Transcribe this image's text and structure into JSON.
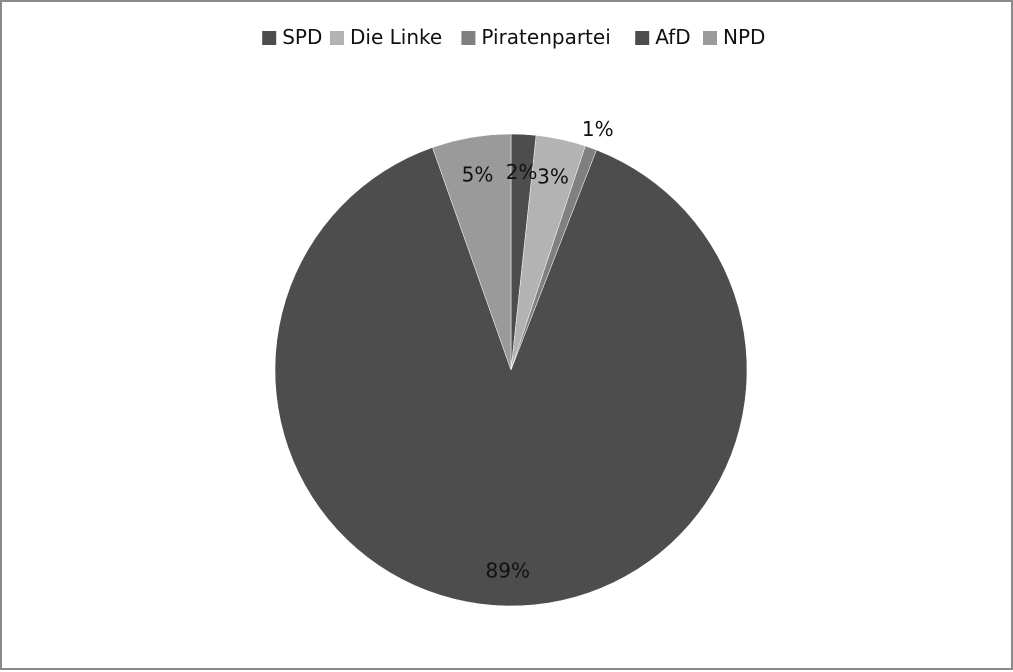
{
  "chart_data": {
    "type": "pie",
    "title": "",
    "legend_position": "top",
    "categories": [
      "SPD",
      "Die Linke",
      "Piratenpartei",
      "AfD",
      "NPD"
    ],
    "values": [
      1.7,
      3.4,
      0.8,
      88.7,
      5.4
    ],
    "labels": [
      "2%",
      "3%",
      "1%",
      "89%",
      "5%"
    ],
    "colors": [
      "#4d4d4d",
      "#b3b3b3",
      "#808080",
      "#4d4d4d",
      "#9a9a9a"
    ]
  }
}
